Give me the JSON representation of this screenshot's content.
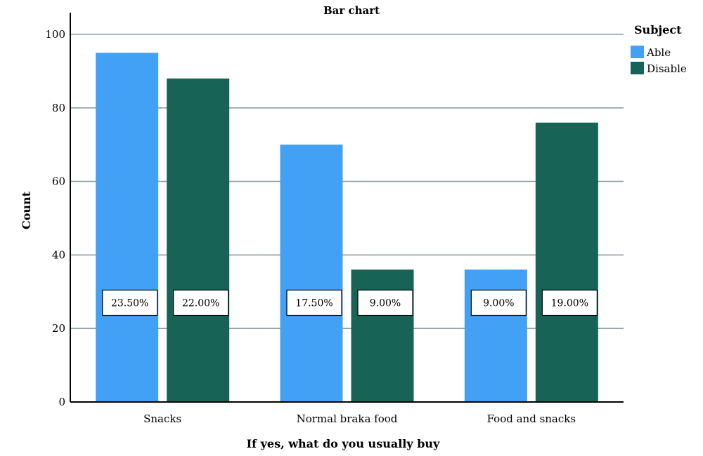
{
  "chart_data": {
    "type": "bar",
    "title": "Bar chart",
    "xlabel": "If yes, what do you usually buy",
    "ylabel": "Count",
    "ylim": [
      0,
      100
    ],
    "yticks": [
      0,
      20,
      40,
      60,
      80,
      100
    ],
    "grid": true,
    "legend": {
      "title": "Subject",
      "placement": "top-right"
    },
    "categories": [
      "Snacks",
      "Normal braka food",
      "Food and snacks"
    ],
    "series": [
      {
        "name": "Able",
        "color": "#42a1f4",
        "values": [
          95,
          70,
          36
        ],
        "labels": [
          "23.50%",
          "17.50%",
          "9.00%"
        ]
      },
      {
        "name": "Disable",
        "color": "#176356",
        "values": [
          88,
          36,
          76
        ],
        "labels": [
          "22.00%",
          "9.00%",
          "19.00%"
        ]
      }
    ],
    "data_label_value": 27
  }
}
